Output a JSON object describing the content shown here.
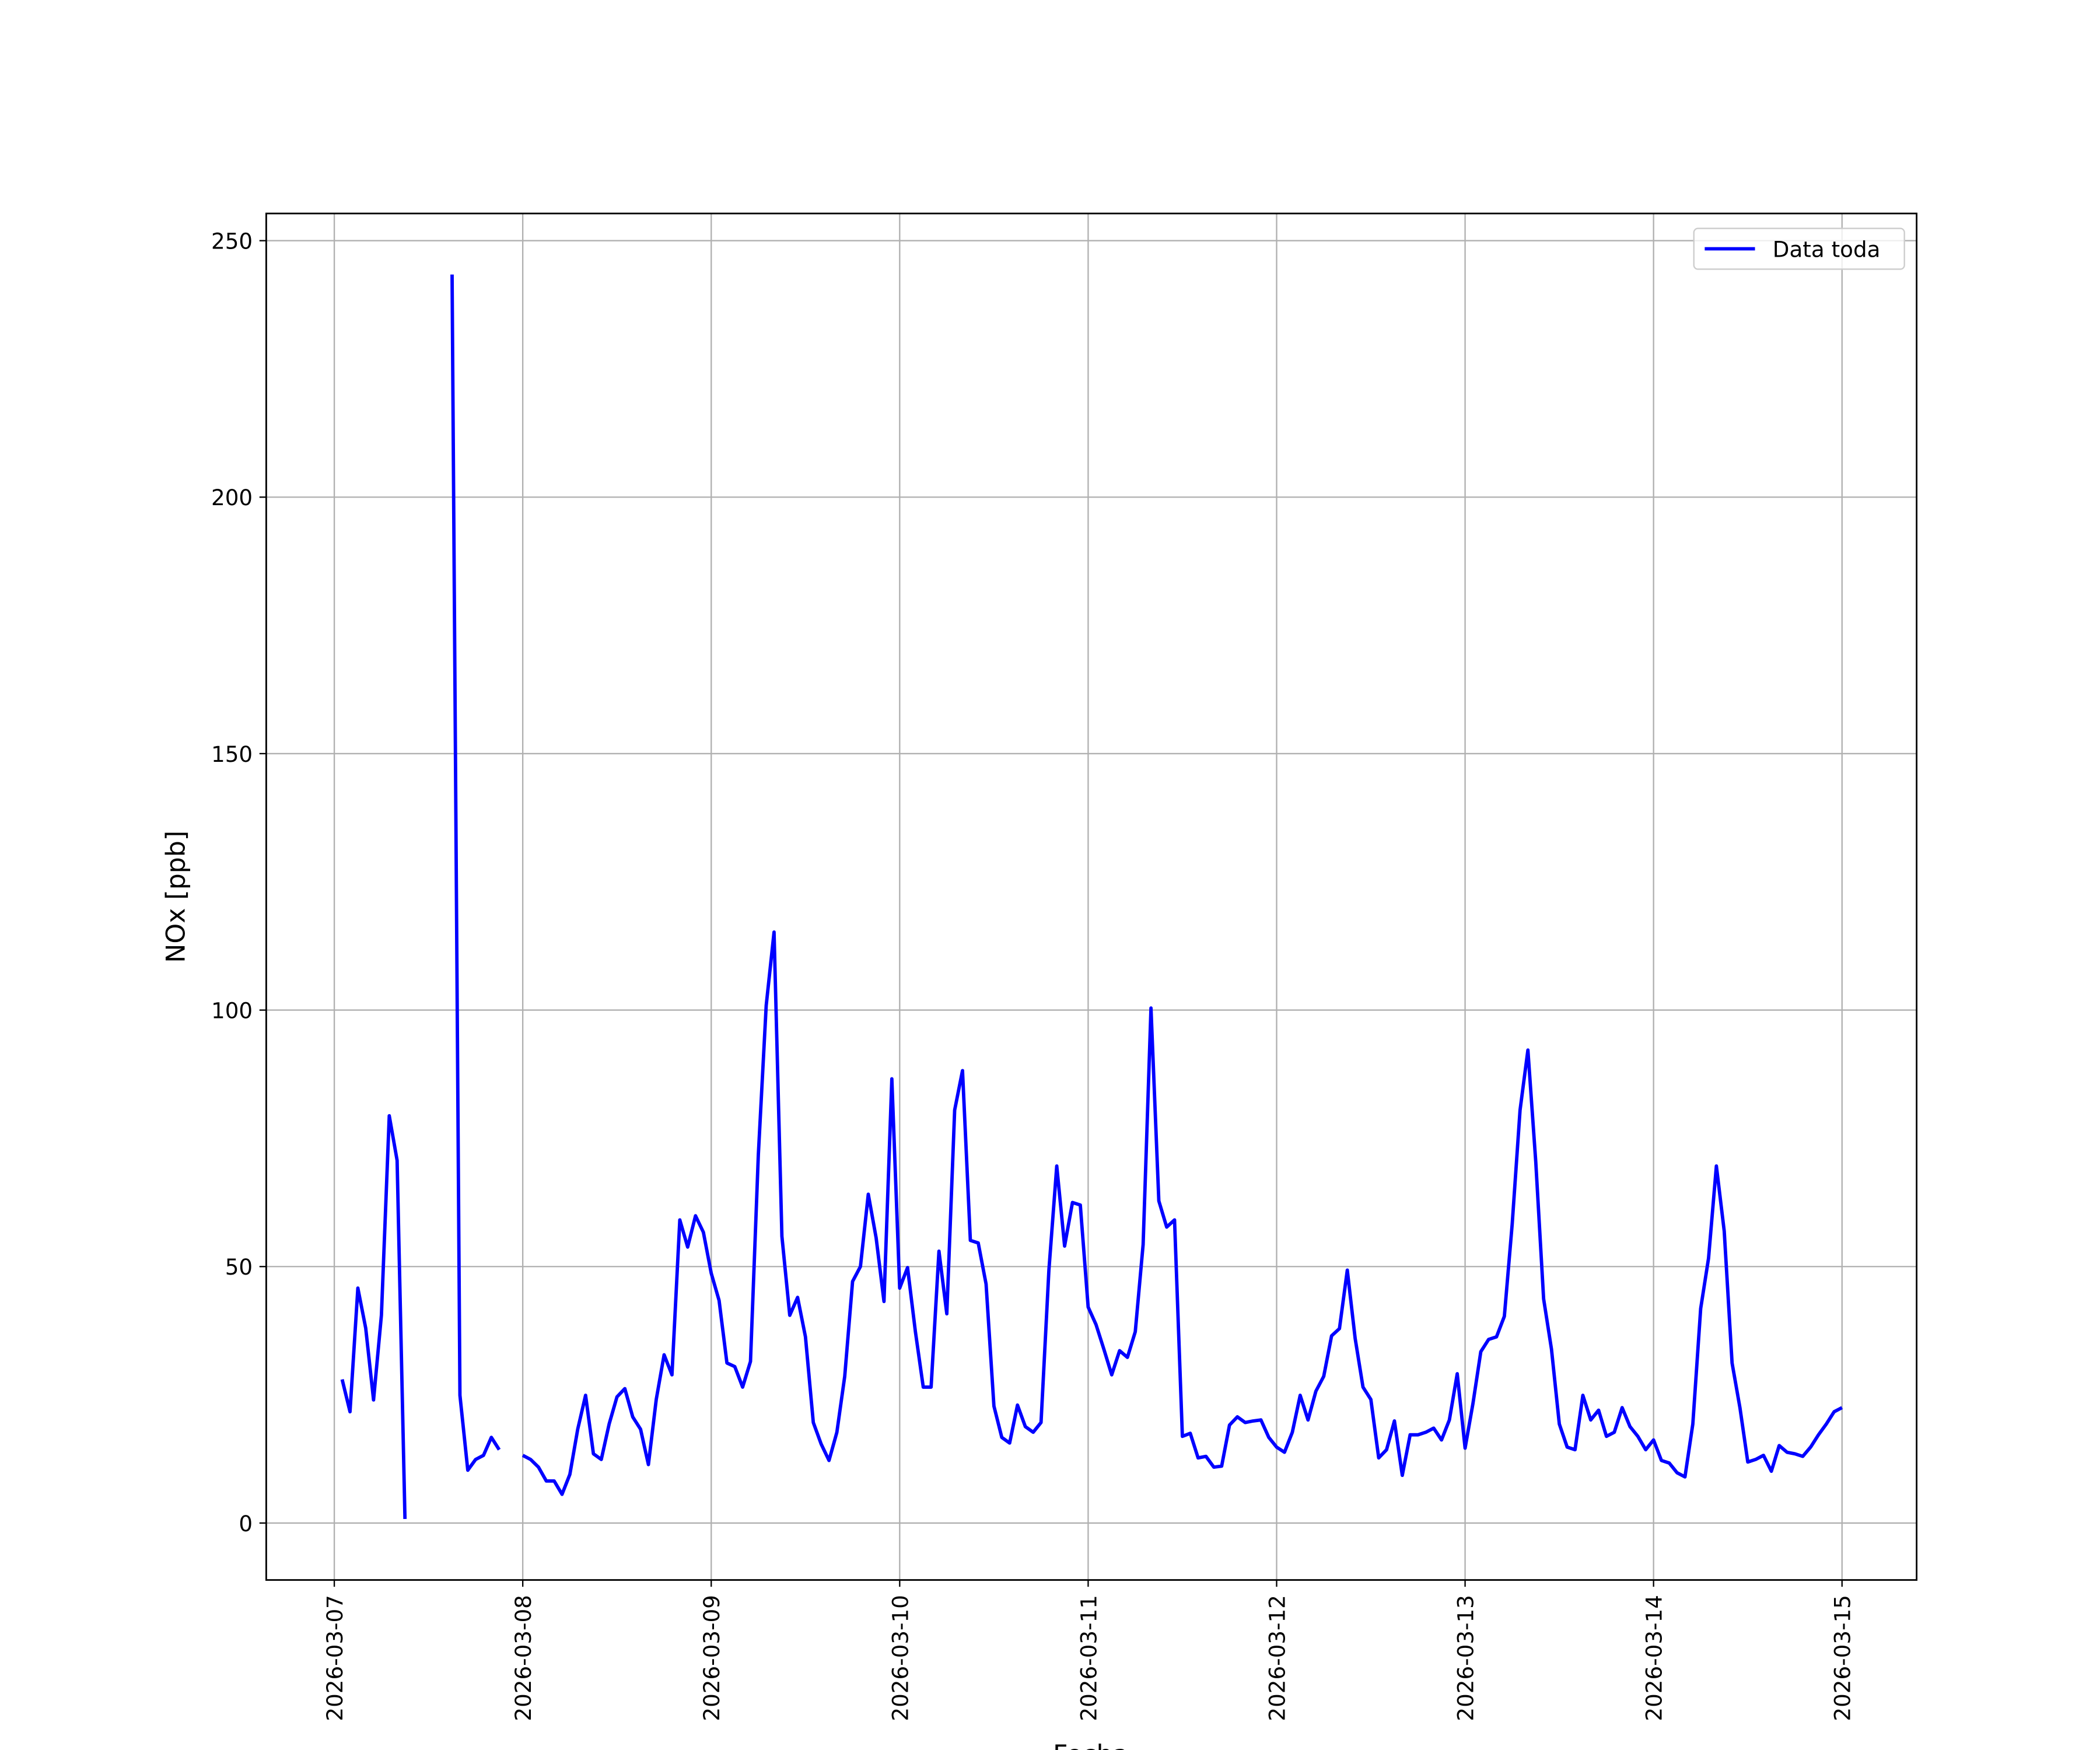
{
  "chart_data": {
    "type": "line",
    "xlabel": "Fecha",
    "ylabel": "NOx [ppb]",
    "x": [
      "2026-03-07 01:00",
      "2026-03-07 02:00",
      "2026-03-07 03:00",
      "2026-03-07 04:00",
      "2026-03-07 05:00",
      "2026-03-07 06:00",
      "2026-03-07 07:00",
      "2026-03-07 08:00",
      "2026-03-07 09:00",
      "2026-03-07 10:00",
      "2026-03-07 11:00",
      "2026-03-07 12:00",
      "2026-03-07 13:00",
      "2026-03-07 14:00",
      "2026-03-07 15:00",
      "2026-03-07 16:00",
      "2026-03-07 17:00",
      "2026-03-07 18:00",
      "2026-03-07 19:00",
      "2026-03-07 20:00",
      "2026-03-07 21:00",
      "2026-03-07 22:00",
      "2026-03-07 23:00",
      "2026-03-08 00:00",
      "2026-03-08 01:00",
      "2026-03-08 02:00",
      "2026-03-08 03:00",
      "2026-03-08 04:00",
      "2026-03-08 05:00",
      "2026-03-08 06:00",
      "2026-03-08 07:00",
      "2026-03-08 08:00",
      "2026-03-08 09:00",
      "2026-03-08 10:00",
      "2026-03-08 11:00",
      "2026-03-08 12:00",
      "2026-03-08 13:00",
      "2026-03-08 14:00",
      "2026-03-08 15:00",
      "2026-03-08 16:00",
      "2026-03-08 17:00",
      "2026-03-08 18:00",
      "2026-03-08 19:00",
      "2026-03-08 20:00",
      "2026-03-08 21:00",
      "2026-03-08 22:00",
      "2026-03-08 23:00",
      "2026-03-09 00:00",
      "2026-03-09 01:00",
      "2026-03-09 02:00",
      "2026-03-09 03:00",
      "2026-03-09 04:00",
      "2026-03-09 05:00",
      "2026-03-09 06:00",
      "2026-03-09 07:00",
      "2026-03-09 08:00",
      "2026-03-09 09:00",
      "2026-03-09 10:00",
      "2026-03-09 11:00",
      "2026-03-09 12:00",
      "2026-03-09 13:00",
      "2026-03-09 14:00",
      "2026-03-09 15:00",
      "2026-03-09 16:00",
      "2026-03-09 17:00",
      "2026-03-09 18:00",
      "2026-03-09 19:00",
      "2026-03-09 20:00",
      "2026-03-09 21:00",
      "2026-03-09 22:00",
      "2026-03-09 23:00",
      "2026-03-10 00:00",
      "2026-03-10 01:00",
      "2026-03-10 02:00",
      "2026-03-10 03:00",
      "2026-03-10 04:00",
      "2026-03-10 05:00",
      "2026-03-10 06:00",
      "2026-03-10 07:00",
      "2026-03-10 08:00",
      "2026-03-10 09:00",
      "2026-03-10 10:00",
      "2026-03-10 11:00",
      "2026-03-10 12:00",
      "2026-03-10 13:00",
      "2026-03-10 14:00",
      "2026-03-10 15:00",
      "2026-03-10 16:00",
      "2026-03-10 17:00",
      "2026-03-10 18:00",
      "2026-03-10 19:00",
      "2026-03-10 20:00",
      "2026-03-10 21:00",
      "2026-03-10 22:00",
      "2026-03-10 23:00",
      "2026-03-11 00:00",
      "2026-03-11 01:00",
      "2026-03-11 02:00",
      "2026-03-11 03:00",
      "2026-03-11 04:00",
      "2026-03-11 05:00",
      "2026-03-11 06:00",
      "2026-03-11 07:00",
      "2026-03-11 08:00",
      "2026-03-11 09:00",
      "2026-03-11 10:00",
      "2026-03-11 11:00",
      "2026-03-11 12:00",
      "2026-03-11 13:00",
      "2026-03-11 14:00",
      "2026-03-11 15:00",
      "2026-03-11 16:00",
      "2026-03-11 17:00",
      "2026-03-11 18:00",
      "2026-03-11 19:00",
      "2026-03-11 20:00",
      "2026-03-11 21:00",
      "2026-03-11 22:00",
      "2026-03-11 23:00",
      "2026-03-12 00:00",
      "2026-03-12 01:00",
      "2026-03-12 02:00",
      "2026-03-12 03:00",
      "2026-03-12 04:00",
      "2026-03-12 05:00",
      "2026-03-12 06:00",
      "2026-03-12 07:00",
      "2026-03-12 08:00",
      "2026-03-12 09:00",
      "2026-03-12 10:00",
      "2026-03-12 11:00",
      "2026-03-12 12:00",
      "2026-03-12 13:00",
      "2026-03-12 14:00",
      "2026-03-12 15:00",
      "2026-03-12 16:00",
      "2026-03-12 17:00",
      "2026-03-12 18:00",
      "2026-03-12 19:00",
      "2026-03-12 20:00",
      "2026-03-12 21:00",
      "2026-03-12 22:00",
      "2026-03-12 23:00",
      "2026-03-13 00:00",
      "2026-03-13 01:00",
      "2026-03-13 02:00",
      "2026-03-13 03:00",
      "2026-03-13 04:00",
      "2026-03-13 05:00",
      "2026-03-13 06:00",
      "2026-03-13 07:00",
      "2026-03-13 08:00",
      "2026-03-13 09:00",
      "2026-03-13 10:00",
      "2026-03-13 11:00",
      "2026-03-13 12:00",
      "2026-03-13 13:00",
      "2026-03-13 14:00",
      "2026-03-13 15:00",
      "2026-03-13 16:00",
      "2026-03-13 17:00",
      "2026-03-13 18:00",
      "2026-03-13 19:00",
      "2026-03-13 20:00",
      "2026-03-13 21:00",
      "2026-03-13 22:00",
      "2026-03-13 23:00",
      "2026-03-14 00:00",
      "2026-03-14 01:00",
      "2026-03-14 02:00",
      "2026-03-14 03:00",
      "2026-03-14 04:00",
      "2026-03-14 05:00",
      "2026-03-14 06:00",
      "2026-03-14 07:00",
      "2026-03-14 08:00",
      "2026-03-14 09:00",
      "2026-03-14 10:00",
      "2026-03-14 11:00",
      "2026-03-14 12:00",
      "2026-03-14 13:00",
      "2026-03-14 14:00",
      "2026-03-14 15:00",
      "2026-03-14 16:00",
      "2026-03-14 17:00",
      "2026-03-14 18:00",
      "2026-03-14 19:00",
      "2026-03-14 20:00",
      "2026-03-14 21:00",
      "2026-03-14 22:00",
      "2026-03-14 23:00",
      "2026-03-15 00:00"
    ],
    "series": [
      {
        "name": "Data toda",
        "color": "#0000ff",
        "values": [
          28,
          21.7,
          45.8,
          38,
          24,
          40.5,
          79.4,
          70.7,
          0.8,
          null,
          null,
          null,
          null,
          null,
          243.4,
          24.9,
          10.3,
          12.4,
          13.2,
          16.7,
          14.3,
          null,
          null,
          13.2,
          12.4,
          10.9,
          8.2,
          8.2,
          5.6,
          9.5,
          18.3,
          24.9,
          13.5,
          12.4,
          19.3,
          24.6,
          26.2,
          20.7,
          18.3,
          11.4,
          24.1,
          32.8,
          28.9,
          59.1,
          53.8,
          59.9,
          56.7,
          48.7,
          43.4,
          31.2,
          30.5,
          26.5,
          31.5,
          71.8,
          100.9,
          115.2,
          55.9,
          40.5,
          44,
          36.3,
          19.6,
          15.4,
          12.2,
          17.7,
          28.6,
          47.1,
          50,
          64.1,
          55.6,
          43.2,
          86.6,
          45.8,
          49.8,
          37.3,
          26.5,
          26.5,
          53,
          40.8,
          80.5,
          88.2,
          55.1,
          54.6,
          46.6,
          22.8,
          16.7,
          15.6,
          23,
          18.8,
          17.7,
          19.6,
          49.3,
          69.6,
          54,
          62.5,
          62,
          42.1,
          38.7,
          33.9,
          28.9,
          33.6,
          32.3,
          37.3,
          54.3,
          100.4,
          62.8,
          57.7,
          59.1,
          16.9,
          17.5,
          12.7,
          13,
          10.9,
          11.1,
          19.1,
          20.7,
          19.6,
          19.9,
          20.1,
          16.7,
          14.8,
          13.8,
          17.7,
          24.9,
          20.1,
          25.7,
          28.6,
          36.5,
          37.9,
          49.3,
          36,
          26.5,
          24.1,
          12.7,
          14.3,
          19.9,
          9.3,
          17.2,
          17.2,
          17.7,
          18.5,
          16.2,
          20.1,
          29.1,
          14.6,
          23.3,
          33.4,
          35.8,
          36.3,
          40.3,
          58.3,
          80.5,
          92.2,
          70.4,
          43.7,
          33.9,
          19.3,
          14.8,
          14.3,
          24.9,
          20.1,
          22,
          16.9,
          17.7,
          22.5,
          18.8,
          16.9,
          14.3,
          16.2,
          12.2,
          11.7,
          9.8,
          9,
          19.3,
          41.8,
          51.6,
          69.6,
          56.9,
          31.2,
          22.5,
          11.9,
          12.4,
          13.2,
          10.1,
          15.1,
          13.8,
          13.5,
          13,
          14.8,
          17.2,
          19.3,
          21.7,
          22.5
        ]
      }
    ],
    "xlim": [
      "2026-03-06 15:20",
      "2026-03-15 09:30"
    ],
    "xticks": [
      "2026-03-07",
      "2026-03-08",
      "2026-03-09",
      "2026-03-10",
      "2026-03-11",
      "2026-03-12",
      "2026-03-13",
      "2026-03-14",
      "2026-03-15"
    ],
    "ylim": [
      -11.1,
      255.3
    ],
    "yticks": [
      0,
      50,
      100,
      150,
      200,
      250
    ],
    "grid": true,
    "legend": "upper right"
  }
}
